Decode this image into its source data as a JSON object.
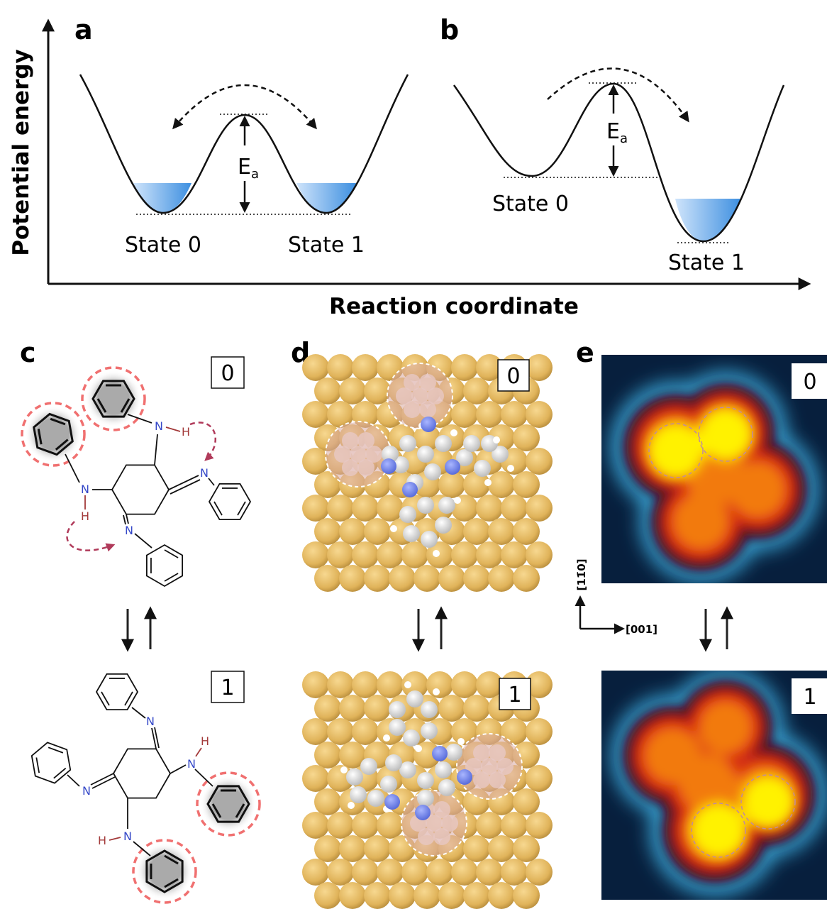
{
  "axes": {
    "y_label": "Potential energy",
    "x_label": "Reaction coordinate"
  },
  "panels": {
    "a": {
      "label": "a",
      "states": [
        "State 0",
        "State 1"
      ],
      "barrier": {
        "main": "E",
        "sub": "a"
      }
    },
    "b": {
      "label": "b",
      "states": [
        "State 0",
        "State 1"
      ],
      "barrier": {
        "main": "E",
        "sub": "a"
      }
    },
    "c": {
      "label": "c",
      "boxes": [
        "0",
        "1"
      ],
      "state0_atoms": [
        "N",
        "H",
        "N",
        "N",
        "H",
        "N"
      ],
      "state1_atoms": [
        "N",
        "N",
        "N",
        "H",
        "N",
        "H"
      ]
    },
    "d": {
      "label": "d",
      "boxes": [
        "0",
        "1"
      ]
    },
    "e": {
      "label": "e",
      "boxes": [
        "0",
        "1"
      ],
      "directions": [
        "[11̄0]",
        "[001]"
      ]
    }
  }
}
